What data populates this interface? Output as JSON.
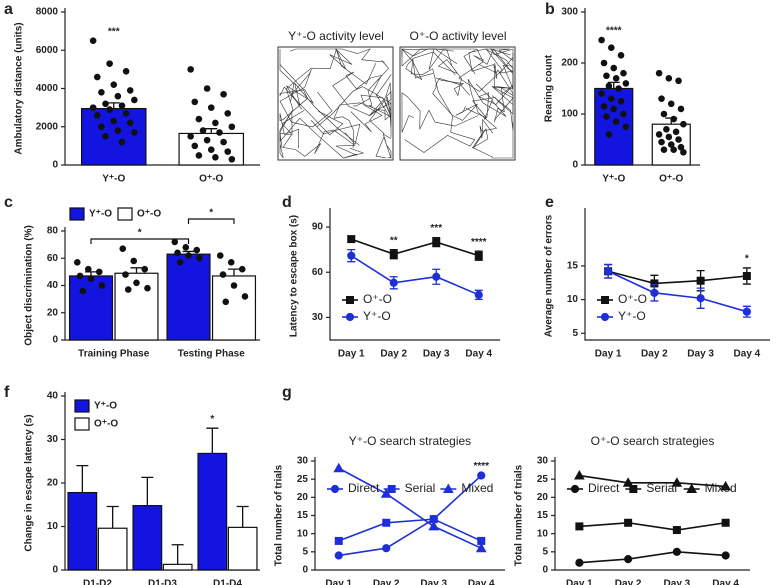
{
  "chart_data": [
    {
      "type": "bar",
      "panel": "a",
      "ylabel": "Ambulatory distance (units)",
      "categories": [
        "Y⁺-O",
        "O⁺-O"
      ],
      "values": [
        2950,
        1650
      ],
      "errors": [
        300,
        250
      ],
      "colors": [
        "#1414e0",
        "#ffffff"
      ],
      "points": [
        [
          6500,
          5300,
          4900,
          4600,
          4200,
          3900,
          3800,
          3600,
          3400,
          3200,
          3100,
          3000,
          2900,
          2700,
          2600,
          2300,
          2200,
          2000,
          1800,
          1700,
          1500,
          1200
        ],
        [
          5000,
          4000,
          3700,
          3300,
          3000,
          2700,
          2400,
          2200,
          2000,
          1800,
          1700,
          1500,
          1300,
          1200,
          1000,
          800,
          700,
          500,
          400,
          300
        ]
      ],
      "annotations": [
        "***",
        null
      ],
      "ylim": [
        0,
        8000
      ],
      "yticks": [
        0,
        2000,
        4000,
        6000,
        8000
      ]
    },
    {
      "type": "bar",
      "panel": "b",
      "ylabel": "Rearing count",
      "categories": [
        "Y⁺-O",
        "O⁺-O"
      ],
      "values": [
        150,
        80
      ],
      "errors": [
        12,
        12
      ],
      "colors": [
        "#1414e0",
        "#ffffff"
      ],
      "points": [
        [
          245,
          230,
          215,
          200,
          190,
          180,
          175,
          170,
          160,
          155,
          150,
          140,
          130,
          125,
          115,
          110,
          100,
          95,
          85,
          75,
          60
        ],
        [
          180,
          170,
          165,
          130,
          120,
          110,
          100,
          90,
          80,
          70,
          65,
          60,
          55,
          50,
          45,
          40,
          35,
          30,
          30,
          25
        ]
      ],
      "annotations": [
        "****",
        null
      ],
      "ylim": [
        0,
        300
      ],
      "yticks": [
        0,
        100,
        200,
        300
      ]
    },
    {
      "type": "bar",
      "panel": "c",
      "ylabel": "Object  discrimination (%)",
      "legend": "above",
      "categories": [
        "Training Phase",
        "Testing Phase"
      ],
      "series": [
        {
          "name": "Y⁺-O",
          "color": "#1414e0",
          "values": [
            47,
            63
          ],
          "errors": [
            3,
            2
          ],
          "points": [
            [
              57,
              52,
              50,
              47,
              45,
              40,
              36
            ],
            [
              72,
              68,
              66,
              64,
              62,
              60,
              57
            ]
          ]
        },
        {
          "name": "O⁺-O",
          "color": "#ffffff",
          "values": [
            49,
            47
          ],
          "errors": [
            4,
            5
          ],
          "points": [
            [
              67,
              58,
              52,
              48,
              42,
              38,
              37
            ],
            [
              62,
              57,
              52,
              48,
              40,
              32,
              28
            ]
          ]
        }
      ],
      "brackets": [
        "*",
        "*"
      ],
      "ylim": [
        0,
        80
      ],
      "yticks": [
        0,
        20,
        40,
        60,
        80
      ]
    },
    {
      "type": "line",
      "panel": "d",
      "ylabel": "Latency to escape box (s)",
      "legend": "lower-left",
      "categories": [
        "Day 1",
        "Day 2",
        "Day 3",
        "Day 4"
      ],
      "series": [
        {
          "name": "O⁺-O",
          "color": "#111111",
          "marker": "square",
          "values": [
            82,
            72,
            80,
            71
          ],
          "errors": [
            2,
            3,
            3,
            3
          ]
        },
        {
          "name": "Y⁺-O",
          "color": "#1f2fd8",
          "marker": "circle",
          "values": [
            71,
            53,
            57,
            45
          ],
          "errors": [
            4,
            4,
            5,
            3
          ]
        }
      ],
      "annotations": [
        null,
        "**",
        "***",
        "****"
      ],
      "ylim": [
        15,
        100
      ],
      "yticks": [
        30,
        60,
        90
      ]
    },
    {
      "type": "line",
      "panel": "e",
      "ylabel": "Average number of errors",
      "legend": "lower-left",
      "categories": [
        "Day 1",
        "Day 2",
        "Day 3",
        "Day 4"
      ],
      "series": [
        {
          "name": "O⁺-O",
          "color": "#111111",
          "marker": "square",
          "values": [
            14.2,
            12.4,
            12.8,
            13.5
          ],
          "errors": [
            1,
            1.2,
            1.5,
            1.2
          ]
        },
        {
          "name": "Y⁺-O",
          "color": "#1f2fd8",
          "marker": "circle",
          "values": [
            14.2,
            11,
            10.2,
            8.2
          ],
          "errors": [
            1,
            1.2,
            1.5,
            0.8
          ]
        }
      ],
      "annotations": [
        null,
        null,
        null,
        "*"
      ],
      "ylim": [
        4,
        23
      ],
      "yticks": [
        5,
        10,
        15
      ]
    },
    {
      "type": "bar",
      "panel": "f",
      "ylabel": "Change in escape latency (s)",
      "legend": "top-left",
      "categories": [
        "D1-D2",
        "D1-D3",
        "D1-D4"
      ],
      "series": [
        {
          "name": "Y⁺-O",
          "color": "#1414e0",
          "values": [
            17.8,
            14.8,
            26.8
          ],
          "errors": [
            6.2,
            6.5,
            5.8
          ]
        },
        {
          "name": "O⁺-O",
          "color": "#ffffff",
          "values": [
            9.6,
            1.3,
            9.8
          ],
          "errors": [
            5,
            4.5,
            4.8
          ]
        }
      ],
      "annotations": [
        null,
        null,
        "*"
      ],
      "ylim": [
        0,
        40
      ],
      "yticks": [
        0,
        10,
        20,
        30,
        40
      ]
    },
    {
      "type": "line",
      "panel": "g",
      "title": "Y⁺-O search strategies",
      "ylabel": "Total number of trials",
      "legend": "top",
      "categories": [
        "Day 1",
        "Day 2",
        "Day 3",
        "Day 4"
      ],
      "series": [
        {
          "name": "Direct",
          "color": "#1f2fd8",
          "marker": "circle",
          "values": [
            4,
            6,
            14,
            26
          ]
        },
        {
          "name": "Serial",
          "color": "#1f2fd8",
          "marker": "square",
          "values": [
            8,
            13,
            14,
            8
          ]
        },
        {
          "name": "Mixed",
          "color": "#1f2fd8",
          "marker": "triangle",
          "values": [
            28,
            21,
            12,
            6
          ]
        }
      ],
      "annotations": [
        null,
        null,
        null,
        "****"
      ],
      "ylim": [
        0,
        30
      ],
      "yticks": [
        0,
        5,
        10,
        15,
        20,
        25,
        30
      ]
    },
    {
      "type": "line",
      "title": "O⁺-O search strategies",
      "ylabel": "Total number of trials",
      "legend": "top",
      "categories": [
        "Day 1",
        "Day 2",
        "Day 3",
        "Day 4"
      ],
      "series": [
        {
          "name": "Direct",
          "color": "#111111",
          "marker": "circle",
          "values": [
            2,
            3,
            5,
            4
          ]
        },
        {
          "name": "Serial",
          "color": "#111111",
          "marker": "square",
          "values": [
            12,
            13,
            11,
            13
          ]
        },
        {
          "name": "Mixed",
          "color": "#111111",
          "marker": "triangle",
          "values": [
            26,
            24,
            24,
            23
          ]
        }
      ],
      "ylim": [
        0,
        30
      ],
      "yticks": [
        0,
        5,
        10,
        15,
        20,
        25,
        30
      ]
    }
  ],
  "activity_panels": [
    "Y⁺-O activity level",
    "O⁺-O activity level"
  ]
}
